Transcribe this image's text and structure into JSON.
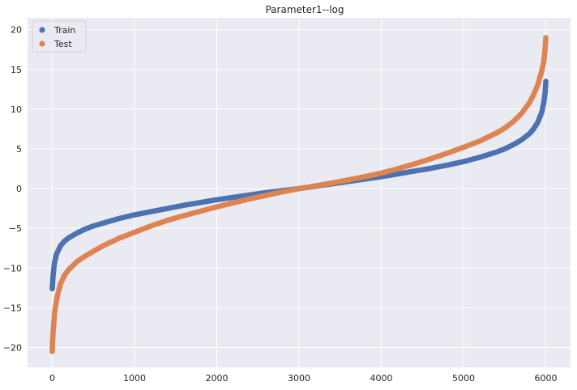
{
  "chart_data": {
    "type": "scatter",
    "title": "Parameter1--log",
    "xlabel": "",
    "ylabel": "",
    "xlim": [
      -300,
      6300
    ],
    "ylim": [
      -22.5,
      21.5
    ],
    "xticks": [
      0,
      1000,
      2000,
      3000,
      4000,
      5000,
      6000
    ],
    "yticks": [
      -20,
      -15,
      -10,
      -5,
      0,
      5,
      10,
      15,
      20
    ],
    "grid": true,
    "legend_position": "top-left",
    "background_color": "#eaeaf2",
    "grid_color": "#ffffff",
    "series": [
      {
        "name": "Train",
        "color": "#4c72b0",
        "x": [
          0,
          10,
          25,
          50,
          100,
          150,
          200,
          300,
          400,
          500,
          600,
          700,
          800,
          900,
          1000,
          1200,
          1400,
          1600,
          1800,
          2000,
          2200,
          2400,
          2600,
          2800,
          3000,
          3200,
          3400,
          3600,
          3800,
          4000,
          4200,
          4400,
          4600,
          4800,
          5000,
          5200,
          5400,
          5500,
          5600,
          5700,
          5800,
          5850,
          5900,
          5950,
          5975,
          5990,
          6000
        ],
        "y": [
          -12.6,
          -11.0,
          -9.5,
          -8.3,
          -7.2,
          -6.6,
          -6.2,
          -5.6,
          -5.1,
          -4.7,
          -4.4,
          -4.1,
          -3.8,
          -3.55,
          -3.3,
          -2.9,
          -2.5,
          -2.1,
          -1.75,
          -1.4,
          -1.1,
          -0.8,
          -0.5,
          -0.25,
          0.0,
          0.3,
          0.6,
          0.9,
          1.2,
          1.5,
          1.85,
          2.2,
          2.55,
          2.95,
          3.4,
          3.95,
          4.6,
          5.0,
          5.5,
          6.1,
          6.9,
          7.5,
          8.3,
          9.6,
          10.8,
          12.0,
          13.5
        ]
      },
      {
        "name": "Test",
        "color": "#dd8452",
        "x": [
          0,
          5,
          15,
          30,
          60,
          100,
          150,
          200,
          300,
          400,
          500,
          600,
          700,
          800,
          900,
          1000,
          1200,
          1400,
          1600,
          1800,
          2000,
          2200,
          2400,
          2600,
          2800,
          3000,
          3200,
          3400,
          3600,
          3800,
          4000,
          4200,
          4400,
          4600,
          4800,
          5000,
          5200,
          5400,
          5500,
          5600,
          5700,
          5800,
          5850,
          5900,
          5950,
          5975,
          5990,
          6000
        ],
        "y": [
          -20.5,
          -19.0,
          -17.5,
          -15.5,
          -13.6,
          -12.0,
          -10.9,
          -10.2,
          -9.2,
          -8.5,
          -7.9,
          -7.3,
          -6.8,
          -6.3,
          -5.9,
          -5.5,
          -4.7,
          -4.0,
          -3.4,
          -2.85,
          -2.3,
          -1.8,
          -1.3,
          -0.85,
          -0.4,
          0.0,
          0.35,
          0.7,
          1.1,
          1.5,
          1.95,
          2.5,
          3.1,
          3.75,
          4.45,
          5.2,
          6.0,
          7.0,
          7.6,
          8.4,
          9.4,
          10.8,
          11.8,
          13.0,
          14.8,
          16.0,
          17.5,
          19.0
        ]
      }
    ]
  }
}
